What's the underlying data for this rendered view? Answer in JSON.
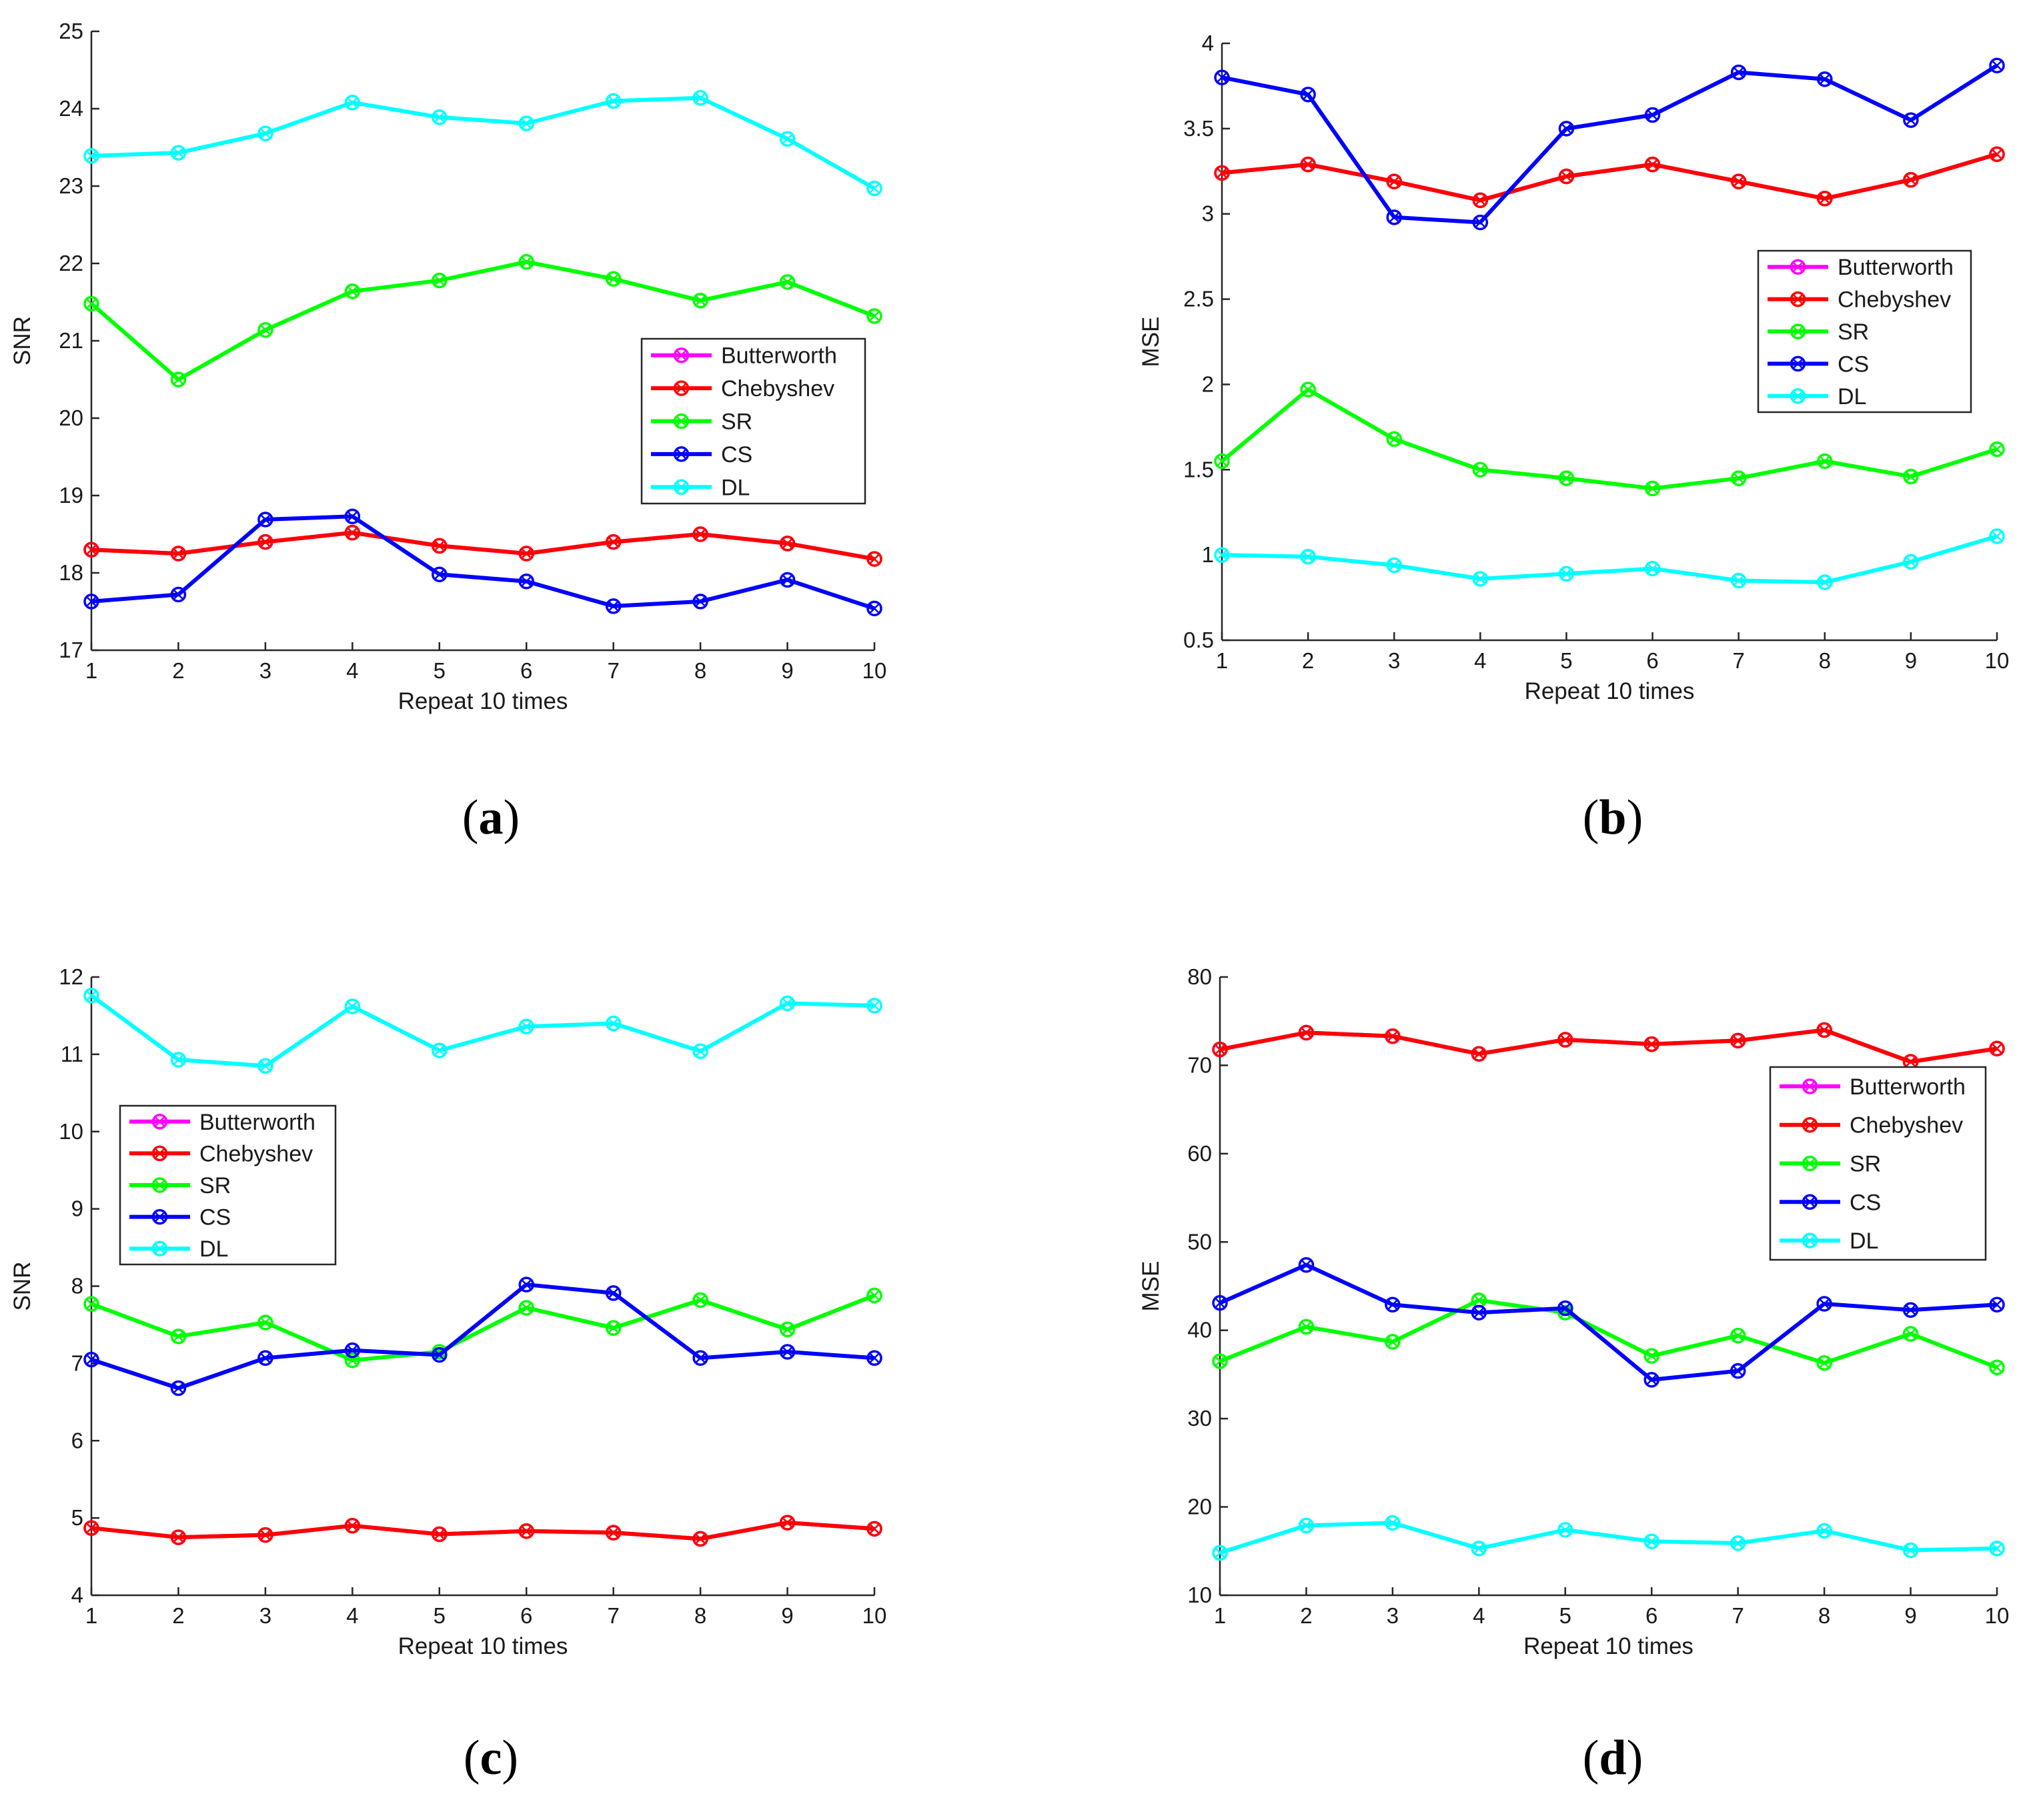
{
  "colors": {
    "Butterworth": "#ff00ff",
    "Chebyshev": "#ff0000",
    "SR": "#00ff00",
    "CS": "#0000ff",
    "DL": "#00ffff"
  },
  "chart_data": [
    {
      "type": "line",
      "panel": "a",
      "caption": "(a)",
      "caption_letter": "a",
      "xlabel": "Repeat 10 times",
      "ylabel": "SNR",
      "xlim": [
        1,
        10
      ],
      "ylim": [
        17,
        25
      ],
      "xticks": [
        1,
        2,
        3,
        4,
        5,
        6,
        7,
        8,
        9,
        10
      ],
      "yticks": [
        17,
        18,
        19,
        20,
        21,
        22,
        23,
        24,
        25
      ],
      "legend_position": "center-right",
      "x": [
        1,
        2,
        3,
        4,
        5,
        6,
        7,
        8,
        9,
        10
      ],
      "series": [
        {
          "name": "Butterworth",
          "values": [
            18.3,
            18.25,
            18.4,
            18.52,
            18.35,
            18.25,
            18.4,
            18.5,
            18.38,
            18.18
          ]
        },
        {
          "name": "Chebyshev",
          "values": [
            18.3,
            18.25,
            18.4,
            18.52,
            18.35,
            18.25,
            18.4,
            18.5,
            18.38,
            18.18
          ]
        },
        {
          "name": "SR",
          "values": [
            21.48,
            20.5,
            21.14,
            21.64,
            21.78,
            22.02,
            21.8,
            21.52,
            21.76,
            21.32
          ]
        },
        {
          "name": "CS",
          "values": [
            17.63,
            17.72,
            18.69,
            18.73,
            17.98,
            17.89,
            17.57,
            17.63,
            17.91,
            17.54
          ]
        },
        {
          "name": "DL",
          "values": [
            23.39,
            23.43,
            23.68,
            24.08,
            23.89,
            23.81,
            24.1,
            24.14,
            23.61,
            22.97
          ]
        }
      ]
    },
    {
      "type": "line",
      "panel": "b",
      "caption": "(b)",
      "caption_letter": "b",
      "xlabel": "Repeat 10 times",
      "ylabel": "MSE",
      "xlim": [
        1,
        10
      ],
      "ylim": [
        0.5,
        4
      ],
      "xticks": [
        1,
        2,
        3,
        4,
        5,
        6,
        7,
        8,
        9,
        10
      ],
      "yticks": [
        0.5,
        1,
        1.5,
        2,
        2.5,
        3,
        3.5,
        4
      ],
      "legend_position": "center-right",
      "x": [
        1,
        2,
        3,
        4,
        5,
        6,
        7,
        8,
        9,
        10
      ],
      "series": [
        {
          "name": "Butterworth",
          "values": [
            3.24,
            3.29,
            3.19,
            3.08,
            3.22,
            3.29,
            3.19,
            3.09,
            3.2,
            3.35
          ]
        },
        {
          "name": "Chebyshev",
          "values": [
            3.24,
            3.29,
            3.19,
            3.08,
            3.22,
            3.29,
            3.19,
            3.09,
            3.2,
            3.35
          ]
        },
        {
          "name": "SR",
          "values": [
            1.55,
            1.97,
            1.68,
            1.5,
            1.45,
            1.39,
            1.45,
            1.55,
            1.46,
            1.62
          ]
        },
        {
          "name": "CS",
          "values": [
            3.8,
            3.7,
            2.98,
            2.95,
            3.5,
            3.58,
            3.83,
            3.79,
            3.55,
            3.87
          ]
        },
        {
          "name": "DL",
          "values": [
            1.0,
            0.99,
            0.94,
            0.86,
            0.89,
            0.92,
            0.85,
            0.84,
            0.96,
            1.11
          ]
        }
      ]
    },
    {
      "type": "line",
      "panel": "c",
      "caption": "(c)",
      "caption_letter": "c",
      "xlabel": "Repeat 10 times",
      "ylabel": "SNR",
      "xlim": [
        1,
        10
      ],
      "ylim": [
        4,
        12
      ],
      "xticks": [
        1,
        2,
        3,
        4,
        5,
        6,
        7,
        8,
        9,
        10
      ],
      "yticks": [
        4,
        5,
        6,
        7,
        8,
        9,
        10,
        11,
        12
      ],
      "legend_position": "center-left",
      "x": [
        1,
        2,
        3,
        4,
        5,
        6,
        7,
        8,
        9,
        10
      ],
      "series": [
        {
          "name": "Butterworth",
          "values": [
            4.87,
            4.75,
            4.78,
            4.9,
            4.79,
            4.83,
            4.81,
            4.73,
            4.94,
            4.86
          ]
        },
        {
          "name": "Chebyshev",
          "values": [
            4.87,
            4.75,
            4.78,
            4.9,
            4.79,
            4.83,
            4.81,
            4.73,
            4.94,
            4.86
          ]
        },
        {
          "name": "SR",
          "values": [
            7.77,
            7.35,
            7.53,
            7.04,
            7.15,
            7.72,
            7.46,
            7.82,
            7.44,
            7.88
          ]
        },
        {
          "name": "CS",
          "values": [
            7.05,
            6.68,
            7.07,
            7.17,
            7.11,
            8.02,
            7.91,
            7.07,
            7.15,
            7.07
          ]
        },
        {
          "name": "DL",
          "values": [
            11.76,
            10.93,
            10.85,
            11.62,
            11.05,
            11.36,
            11.4,
            11.04,
            11.66,
            11.63
          ]
        }
      ]
    },
    {
      "type": "line",
      "panel": "d",
      "caption": "(d)",
      "caption_letter": "d",
      "xlabel": "Repeat 10 times",
      "ylabel": "MSE",
      "xlim": [
        1,
        10
      ],
      "ylim": [
        10,
        80
      ],
      "xticks": [
        1,
        2,
        3,
        4,
        5,
        6,
        7,
        8,
        9,
        10
      ],
      "yticks": [
        10,
        20,
        30,
        40,
        50,
        60,
        70,
        80
      ],
      "legend_position": "center-right",
      "x": [
        1,
        2,
        3,
        4,
        5,
        6,
        7,
        8,
        9,
        10
      ],
      "series": [
        {
          "name": "Butterworth",
          "values": [
            71.8,
            73.7,
            73.3,
            71.3,
            72.9,
            72.4,
            72.8,
            74.0,
            70.4,
            71.9
          ]
        },
        {
          "name": "Chebyshev",
          "values": [
            71.8,
            73.7,
            73.3,
            71.3,
            72.9,
            72.4,
            72.8,
            74.0,
            70.4,
            71.9
          ]
        },
        {
          "name": "SR",
          "values": [
            36.5,
            40.4,
            38.7,
            43.4,
            42.0,
            37.1,
            39.4,
            36.3,
            39.6,
            35.8
          ]
        },
        {
          "name": "CS",
          "values": [
            43.1,
            47.4,
            42.9,
            42.0,
            42.5,
            34.4,
            35.4,
            43.0,
            42.3,
            42.9
          ]
        },
        {
          "name": "DL",
          "values": [
            14.8,
            17.9,
            18.2,
            15.3,
            17.4,
            16.1,
            15.9,
            17.3,
            15.1,
            15.3
          ]
        }
      ]
    }
  ]
}
